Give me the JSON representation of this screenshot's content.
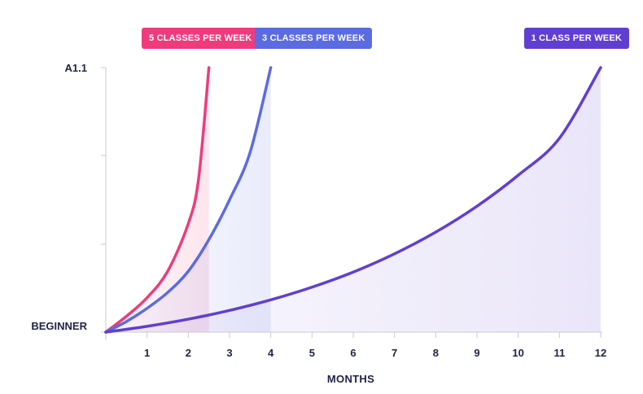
{
  "chart_data": {
    "type": "line",
    "xlabel": "MONTHS",
    "x_ticks": [
      1,
      2,
      3,
      4,
      5,
      6,
      7,
      8,
      9,
      10,
      11,
      12
    ],
    "xlim": [
      0,
      12
    ],
    "y_tick_labels": [
      "BEGINNER",
      "A1.1"
    ],
    "ylim": [
      0,
      1
    ],
    "series": [
      {
        "name": "5 CLASSES PER WEEK",
        "color": "#ef3b7b",
        "points": [
          [
            0,
            0
          ],
          [
            0.5,
            0.06
          ],
          [
            1,
            0.13
          ],
          [
            1.5,
            0.23
          ],
          [
            2,
            0.41
          ],
          [
            2.25,
            0.58
          ],
          [
            2.5,
            1.0
          ]
        ]
      },
      {
        "name": "3 CLASSES PER WEEK",
        "color": "#5b6be1",
        "points": [
          [
            0,
            0
          ],
          [
            0.5,
            0.04
          ],
          [
            1,
            0.09
          ],
          [
            1.5,
            0.15
          ],
          [
            2,
            0.23
          ],
          [
            2.5,
            0.35
          ],
          [
            3,
            0.5
          ],
          [
            3.5,
            0.68
          ],
          [
            4,
            1.0
          ]
        ]
      },
      {
        "name": "1 CLASS PER WEEK",
        "color": "#5f3fd2",
        "points": [
          [
            0,
            0
          ],
          [
            1,
            0.022
          ],
          [
            2,
            0.049
          ],
          [
            3,
            0.082
          ],
          [
            4,
            0.122
          ],
          [
            5,
            0.17
          ],
          [
            6,
            0.227
          ],
          [
            7,
            0.296
          ],
          [
            8,
            0.378
          ],
          [
            9,
            0.476
          ],
          [
            10,
            0.593
          ],
          [
            11,
            0.733
          ],
          [
            12,
            1.0
          ]
        ]
      }
    ]
  }
}
